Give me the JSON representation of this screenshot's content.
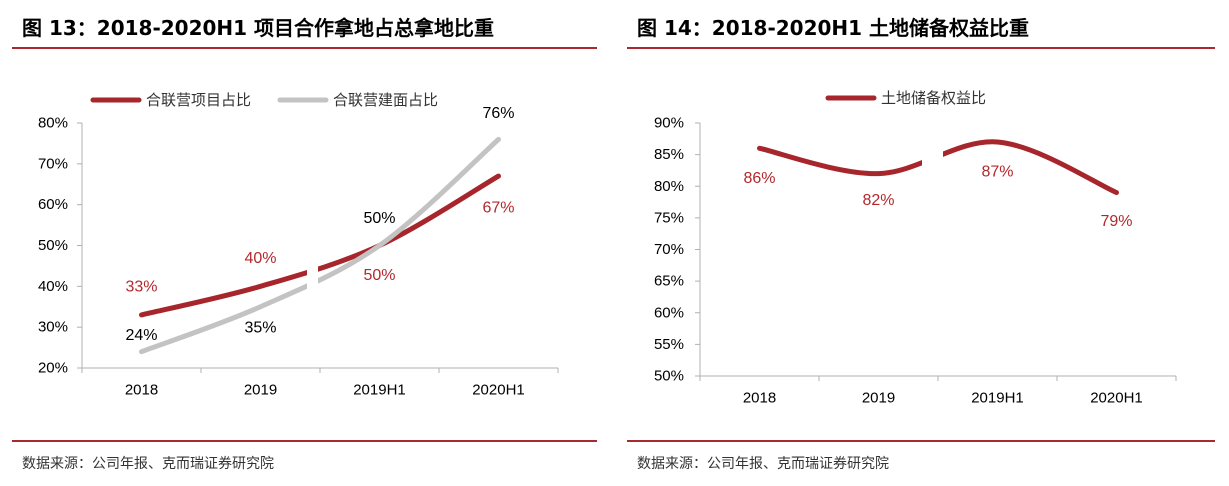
{
  "panels": [
    {
      "source": "数据来源：公司年报、克而瑞证券研究院"
    },
    {
      "source": "数据来源：公司年报、克而瑞证券研究院"
    }
  ],
  "colors": {
    "accent_rule": "#a82a2e",
    "axis": "#b0b0b0"
  },
  "chart_data": [
    {
      "type": "line",
      "title": "图 13：2018-2020H1 项目合作拿地占总拿地比重",
      "categories": [
        "2018",
        "2019",
        "2019H1",
        "2020H1"
      ],
      "ylim": [
        20,
        80
      ],
      "yticks": [
        80,
        70,
        60,
        50,
        40,
        30,
        20
      ],
      "ytick_labels": [
        "80%",
        "70%",
        "60%",
        "50%",
        "40%",
        "30%",
        "20%"
      ],
      "grid": false,
      "smoothed": true,
      "legend": "top-left",
      "series": [
        {
          "name": "合联营项目占比",
          "values": [
            33,
            40,
            50,
            67
          ],
          "data_labels": [
            "33%",
            "40%",
            "50%",
            "67%"
          ],
          "color": "#a6262c",
          "label_color": "#b3282d"
        },
        {
          "name": "合联营建面占比",
          "values": [
            24,
            35,
            50,
            76
          ],
          "data_labels": [
            "24%",
            "35%",
            "50%",
            "76%"
          ],
          "color": "#c3c3c3",
          "label_color": "#000000"
        }
      ]
    },
    {
      "type": "line",
      "title": "图 14：2018-2020H1 土地储备权益比重",
      "categories": [
        "2018",
        "2019",
        "2019H1",
        "2020H1"
      ],
      "ylim": [
        50,
        90
      ],
      "yticks": [
        90,
        85,
        80,
        75,
        70,
        65,
        60,
        55,
        50
      ],
      "ytick_labels": [
        "90%",
        "85%",
        "80%",
        "75%",
        "70%",
        "65%",
        "60%",
        "55%",
        "50%"
      ],
      "grid": false,
      "smoothed": true,
      "legend": "top-center",
      "series": [
        {
          "name": "土地储备权益比",
          "values": [
            86,
            82,
            87,
            79
          ],
          "data_labels": [
            "86%",
            "82%",
            "87%",
            "79%"
          ],
          "color": "#a6262c",
          "label_color": "#b3282d"
        }
      ]
    }
  ]
}
